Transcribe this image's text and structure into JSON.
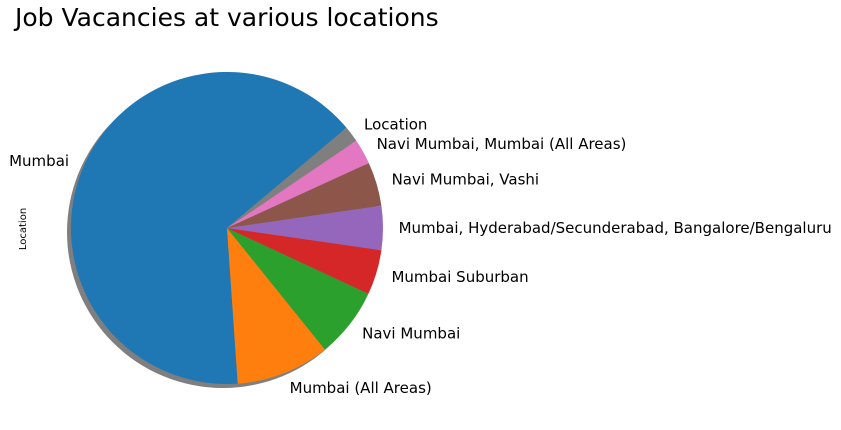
{
  "chart_data": {
    "type": "pie",
    "title": "Job Vacancies at various locations",
    "ylabel": "Location",
    "shadow": true,
    "slices": [
      {
        "label": "Mumbai",
        "value": 67.0,
        "color": "#1f77b4"
      },
      {
        "label": "Mumbai (All Areas)",
        "value": 10.0,
        "color": "#ff7f0e"
      },
      {
        "label": "Navi Mumbai",
        "value": 7.5,
        "color": "#2ca02c"
      },
      {
        "label": "Mumbai Suburban",
        "value": 4.8,
        "color": "#d62728"
      },
      {
        "label": "Mumbai, Hyderabad/Secunderabad, Bangalore/Bengaluru",
        "value": 4.7,
        "color": "#9467bd"
      },
      {
        "label": "Navi Mumbai, Vashi",
        "value": 4.7,
        "color": "#8c564b"
      },
      {
        "label": "Navi Mumbai, Mumbai (All Areas)",
        "value": 2.7,
        "color": "#e377c2"
      },
      {
        "label": "Location",
        "value": 1.7,
        "color": "#7f7f7f"
      }
    ]
  }
}
